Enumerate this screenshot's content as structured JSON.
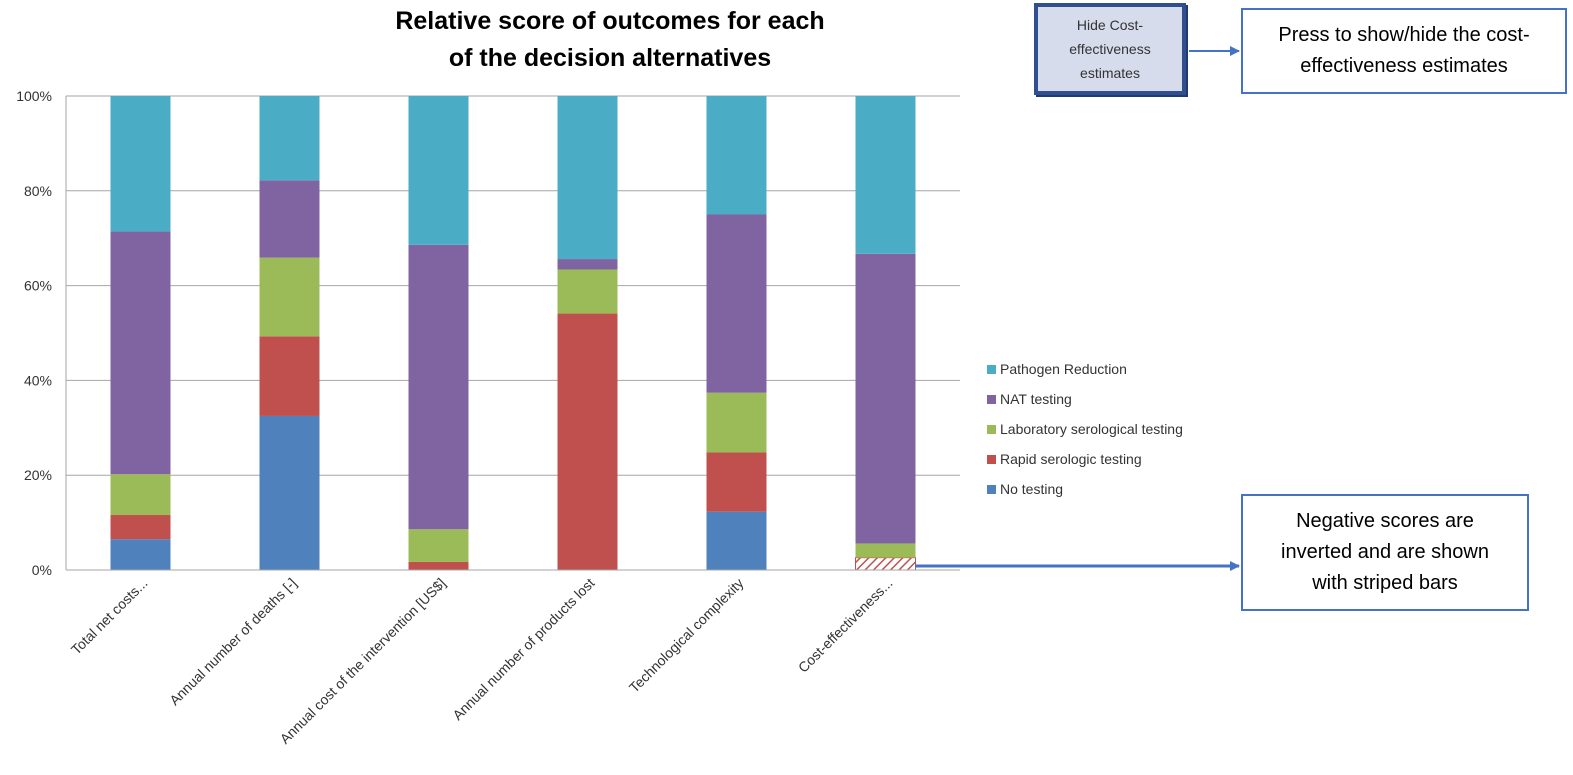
{
  "chart_data": {
    "type": "bar",
    "stacked": "percent",
    "title": "Relative score of outcomes for each of the decision alternatives",
    "title_lines": [
      "Relative score of outcomes for each",
      "of the decision alternatives"
    ],
    "categories": [
      "Total net costs...",
      "Annual number of deaths [-]",
      "Annual cost of the intervention [US$]",
      "Annual number of products lost",
      "Technological complexity",
      "Cost-effectiveness..."
    ],
    "ylim": [
      0,
      100
    ],
    "yticks": [
      "0%",
      "20%",
      "40%",
      "60%",
      "80%",
      "100%"
    ],
    "grid": true,
    "legend_position": "right",
    "series": [
      {
        "name": "No testing",
        "color": "#4f81bd",
        "values": [
          6.5,
          32.5,
          0,
          0,
          12.3,
          0
        ]
      },
      {
        "name": "Rapid serologic testing",
        "color": "#c0504d",
        "values": [
          5.1,
          16.8,
          1.7,
          54.1,
          12.5,
          2.6
        ]
      },
      {
        "name": "Laboratory serological testing",
        "color": "#9bbb59",
        "values": [
          8.6,
          16.6,
          6.9,
          9.3,
          12.6,
          3.0
        ]
      },
      {
        "name": "NAT testing",
        "color": "#8064a2",
        "values": [
          51.2,
          16.3,
          60.0,
          2.2,
          37.6,
          61.1
        ]
      },
      {
        "name": "Pathogen Reduction",
        "color": "#4bacc6",
        "values": [
          28.6,
          17.8,
          31.4,
          34.4,
          25.0,
          33.3
        ]
      }
    ],
    "striped": [
      {
        "category_index": 5,
        "series_index": 1
      }
    ]
  },
  "toggle_button": {
    "label": "Hide Cost-effectiveness estimates"
  },
  "callouts": {
    "top": "Press to show/hide the cost-effectiveness estimates",
    "bottom": "Negative scores are inverted and are shown with striped bars"
  },
  "colors": {
    "arrow": "#4472c4",
    "gridline": "#a6a6a6",
    "stripe": "#c0504d"
  }
}
